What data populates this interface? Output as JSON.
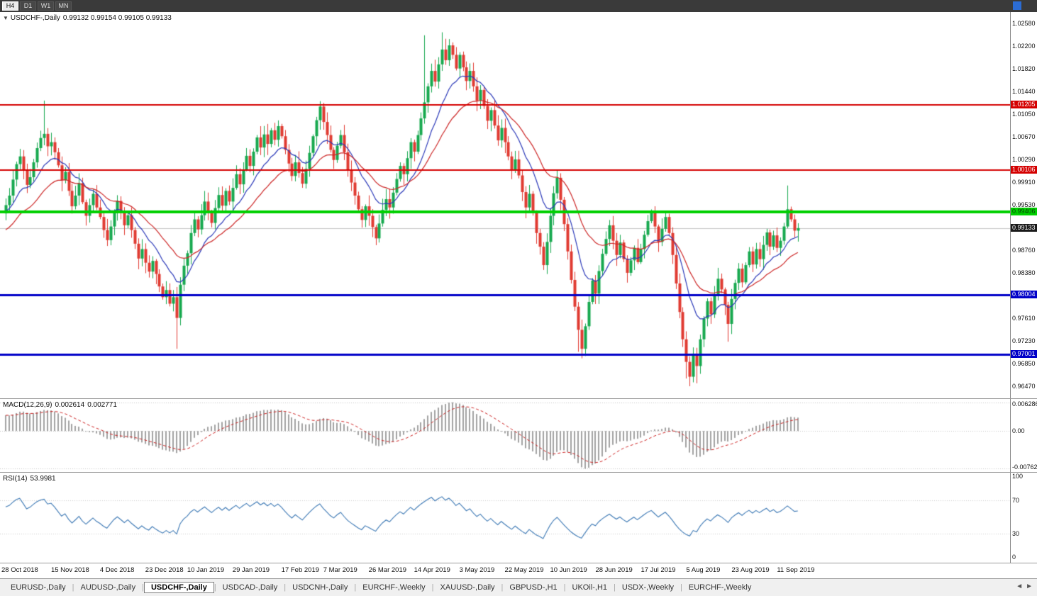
{
  "toolbar": {
    "timeframes": [
      {
        "label": "H4",
        "active": true
      },
      {
        "label": "D1",
        "active": false
      },
      {
        "label": "W1",
        "active": false
      },
      {
        "label": "MN",
        "active": false
      }
    ],
    "window_icon_color": "#2b6cd4"
  },
  "chart": {
    "dropdown_icon": "▼",
    "title_symbol": "USDCHF-,Daily",
    "title_ohlc": "0.99132 0.99154 0.99105 0.99133"
  },
  "chart_data": {
    "type": "candlestick",
    "symbol": "USDCHF-",
    "timeframe": "Daily",
    "ohlc_readout": {
      "open": "0.99132",
      "high": "0.99154",
      "low": "0.99105",
      "close": "0.99133"
    },
    "ylim": [
      0.96267,
      1.02771
    ],
    "up_color": "#17a94f",
    "down_color": "#e03b32",
    "ma_fast_color": "#2a38b8",
    "ma_slow_color": "#cc2525",
    "current_price": 0.99133,
    "current_price_label": "0.99133",
    "current_price_line_color": "#c6c6c6",
    "first_open": 0.9938,
    "closes": [
      0.9952,
      0.9968,
      0.9995,
      1.0021,
      1.0034,
      1.0012,
      0.9986,
      0.9999,
      1.0024,
      1.0048,
      1.0065,
      1.0072,
      1.0051,
      1.0058,
      1.0041,
      1.0019,
      0.9994,
      1.0008,
      0.9976,
      0.995,
      0.9968,
      0.9989,
      0.9957,
      0.9934,
      0.9952,
      0.9971,
      0.9948,
      0.9932,
      0.991,
      0.9893,
      0.9916,
      0.9941,
      0.9959,
      0.994,
      0.9918,
      0.9935,
      0.991,
      0.9887,
      0.9862,
      0.9878,
      0.9855,
      0.984,
      0.9858,
      0.9836,
      0.9815,
      0.9797,
      0.9809,
      0.9786,
      0.9797,
      0.9762,
      0.9818,
      0.985,
      0.9871,
      0.9905,
      0.9928,
      0.9911,
      0.9935,
      0.9958,
      0.994,
      0.9922,
      0.9947,
      0.9969,
      0.9951,
      0.9976,
      0.9958,
      0.9981,
      1.0004,
      0.9987,
      1.0012,
      1.0035,
      1.0018,
      1.0042,
      1.0066,
      1.0049,
      1.0071,
      1.0055,
      1.0078,
      1.0062,
      1.0085,
      1.0068,
      1.0045,
      1.0022,
      1.0001,
      1.0024,
      1.0006,
      0.9988,
      1.0013,
      1.004,
      1.0068,
      1.0095,
      1.0118,
      1.0092,
      1.007,
      1.0045,
      1.0028,
      1.0052,
      1.007,
      1.0041,
      1.0012,
      0.999,
      0.9968,
      0.9945,
      0.9927,
      0.995,
      0.9934,
      0.9915,
      0.9896,
      0.9921,
      0.9944,
      0.9962,
      0.9948,
      0.9973,
      0.9996,
      1.0018,
      1.0004,
      1.0031,
      1.0058,
      1.0042,
      1.007,
      1.0098,
      1.0125,
      1.0152,
      1.0178,
      1.016,
      1.0189,
      1.0214,
      1.0196,
      1.0221,
      1.0205,
      1.0182,
      1.0205,
      1.0184,
      1.0161,
      1.0178,
      1.0152,
      1.0128,
      1.0146,
      1.0119,
      1.0094,
      1.0112,
      1.0086,
      1.0061,
      1.0082,
      1.0058,
      1.0034,
      1.001,
      1.0029,
      1.0002,
      0.9974,
      0.9948,
      0.9971,
      0.994,
      0.9905,
      0.9882,
      0.9851,
      0.989,
      0.9934,
      0.9972,
      0.9998,
      0.9961,
      0.992,
      0.9874,
      0.9826,
      0.9781,
      0.9742,
      0.971,
      0.9748,
      0.9789,
      0.9825,
      0.9803,
      0.9841,
      0.987,
      0.9895,
      0.9918,
      0.9892,
      0.9868,
      0.9889,
      0.9861,
      0.9838,
      0.9859,
      0.988,
      0.9856,
      0.9878,
      0.9902,
      0.9925,
      0.9941,
      0.9916,
      0.989,
      0.9912,
      0.9932,
      0.9905,
      0.9868,
      0.982,
      0.9772,
      0.9726,
      0.9688,
      0.9663,
      0.9702,
      0.9681,
      0.9726,
      0.9761,
      0.979,
      0.9768,
      0.9801,
      0.9828,
      0.981,
      0.9784,
      0.9752,
      0.9794,
      0.9821,
      0.9845,
      0.9822,
      0.9851,
      0.9874,
      0.9852,
      0.9878,
      0.9861,
      0.9885,
      0.9906,
      0.9882,
      0.9901,
      0.988,
      0.9892,
      0.9916,
      0.9945,
      0.9928,
      0.9909,
      0.99133
    ],
    "extremes": {
      "11": {
        "high": 1.0128
      },
      "49": {
        "low": 0.971
      },
      "90": {
        "high": 1.0127
      },
      "120": {
        "high": 1.0238
      },
      "125": {
        "high": 1.0243
      },
      "164": {
        "low": 0.9705
      },
      "165": {
        "low": 0.9694
      },
      "195": {
        "low": 0.966
      },
      "196": {
        "low": 0.9647
      },
      "198": {
        "low": 0.9652
      },
      "207": {
        "low": 0.9722
      },
      "224": {
        "high": 0.9985
      }
    },
    "hlines": [
      {
        "value": 1.01205,
        "label": "1.01205",
        "color": "#d40000",
        "text": "#ffffff",
        "width": 2
      },
      {
        "value": 1.00106,
        "label": "1.00106",
        "color": "#d40000",
        "text": "#ffffff",
        "width": 2
      },
      {
        "value": 0.99406,
        "label": "0.99406",
        "color": "#00d000",
        "text": "#073f07",
        "width": 4
      },
      {
        "value": 0.98004,
        "label": "0.98004",
        "color": "#0000c8",
        "text": "#ffffff",
        "width": 3
      },
      {
        "value": 0.97001,
        "label": "0.97001",
        "color": "#0000c8",
        "text": "#ffffff",
        "width": 3
      }
    ],
    "price_ticks": [
      "1.02580",
      "1.02200",
      "1.01820",
      "1.01440",
      "1.01050",
      "1.00670",
      "1.00290",
      "0.99910",
      "0.99530",
      "0.99150",
      "0.98760",
      "0.98380",
      "0.97990",
      "0.97610",
      "0.97230",
      "0.96850",
      "0.96470"
    ],
    "x_labels": [
      {
        "label": "28 Oct 2018",
        "i": 0
      },
      {
        "label": "15 Nov 2018",
        "i": 13
      },
      {
        "label": "4 Dec 2018",
        "i": 27
      },
      {
        "label": "23 Dec 2018",
        "i": 40
      },
      {
        "label": "10 Jan 2019",
        "i": 52
      },
      {
        "label": "29 Jan 2019",
        "i": 65
      },
      {
        "label": "17 Feb 2019",
        "i": 79
      },
      {
        "label": "7 Mar 2019",
        "i": 91
      },
      {
        "label": "26 Mar 2019",
        "i": 104
      },
      {
        "label": "14 Apr 2019",
        "i": 117
      },
      {
        "label": "3 May 2019",
        "i": 130
      },
      {
        "label": "22 May 2019",
        "i": 143
      },
      {
        "label": "10 Jun 2019",
        "i": 156
      },
      {
        "label": "28 Jun 2019",
        "i": 169
      },
      {
        "label": "17 Jul 2019",
        "i": 182
      },
      {
        "label": "5 Aug 2019",
        "i": 195
      },
      {
        "label": "23 Aug 2019",
        "i": 208
      },
      {
        "label": "11 Sep 2019",
        "i": 221
      }
    ],
    "indicators": {
      "macd": {
        "name": "MACD(12,26,9)",
        "value": "0.002614",
        "signal_value": "0.002771",
        "fast": 12,
        "slow": 26,
        "signal": 9,
        "axis_labels": [
          "0.006286",
          "0.00",
          "-0.00762"
        ],
        "histogram_color": "#a2a2a2",
        "signal_color": "#cc2222"
      },
      "rsi": {
        "name": "RSI(14)",
        "value": "53.9981",
        "period": 14,
        "axis_labels": [
          "100",
          "70",
          "30",
          "0"
        ],
        "levels": [
          70,
          30
        ],
        "line_color": "#3c78b4"
      }
    }
  },
  "tabs": {
    "items": [
      "EURUSD-,Daily",
      "AUDUSD-,Daily",
      "USDCHF-,Daily",
      "USDCAD-,Daily",
      "USDCNH-,Daily",
      "EURCHF-,Weekly",
      "XAUUSD-,Daily",
      "GBPUSD-,H1",
      "UKOil-,H1",
      "USDX-,Weekly",
      "EURCHF-,Weekly"
    ],
    "active_index": 2,
    "scroll_left_icon": "◄",
    "scroll_right_icon": "►"
  }
}
